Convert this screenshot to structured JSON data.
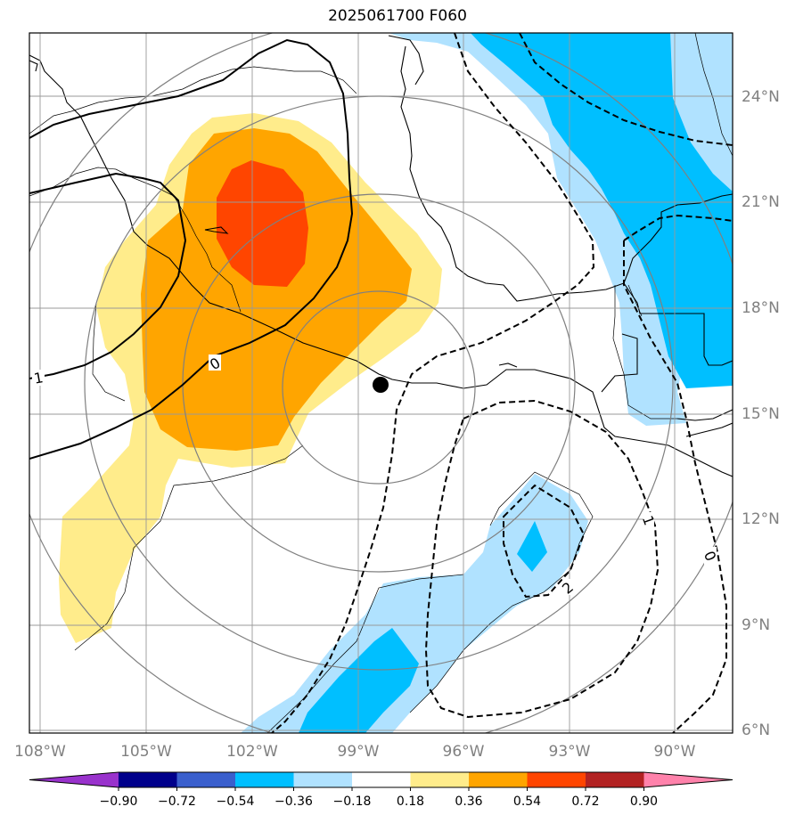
{
  "title": "2025061700 F060",
  "map": {
    "lon_labels": [
      "108°W",
      "105°W",
      "102°W",
      "99°W",
      "96°W",
      "93°W",
      "90°W"
    ],
    "lat_labels": [
      "24°N",
      "21°N",
      "18°N",
      "15°N",
      "12°N",
      "9°N",
      "6°N"
    ],
    "lon_values": [
      -108,
      -105,
      -102,
      -99,
      -96,
      -93,
      -90
    ],
    "lat_values": [
      24,
      21,
      18,
      15,
      12,
      9,
      6
    ],
    "lon_range": [
      -108.3,
      -88.3
    ],
    "lat_range": [
      5.8,
      25.7
    ],
    "center_marker": {
      "lon": -98.4,
      "lat": 15.8
    },
    "contour_labels": [
      "1",
      "0",
      "1",
      "0",
      "2"
    ]
  },
  "colorbar": {
    "ticks": [
      "−0.90",
      "−0.72",
      "−0.54",
      "−0.36",
      "−0.18",
      "0.18",
      "0.36",
      "0.54",
      "0.72",
      "0.90"
    ],
    "colors": [
      "#9932cc",
      "#00008b",
      "#3a5fcd",
      "#00bfff",
      "#b0e2ff",
      "#ffffff",
      "#ffec8b",
      "#ffa500",
      "#ff4500",
      "#b22222",
      "#ff82ab"
    ]
  }
}
